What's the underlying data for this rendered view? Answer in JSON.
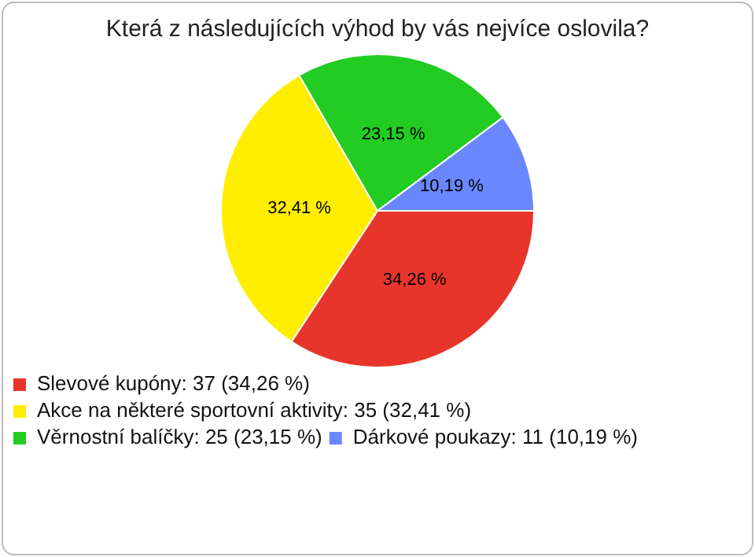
{
  "chart_data": {
    "type": "pie",
    "title": "Která z následujících výhod by vás nejvíce oslovila?",
    "categories": [
      "Slevové kupóny: 37 (34,26 %)",
      "Akce na některé sportovní aktivity: 35 (32,41 %)",
      "Věrnostní balíčky: 25 (23,15 %)",
      "Dárkové poukazy: 11 (10,19 %)"
    ],
    "values": [
      34.26,
      32.41,
      23.15,
      10.19
    ],
    "value_labels": [
      "34,26 %",
      "32,41 %",
      "23,15 %",
      "10,19 %"
    ],
    "colors": [
      "#e8352b",
      "#ffee00",
      "#22cc22",
      "#6a87ff"
    ],
    "legend": "bottom left"
  }
}
